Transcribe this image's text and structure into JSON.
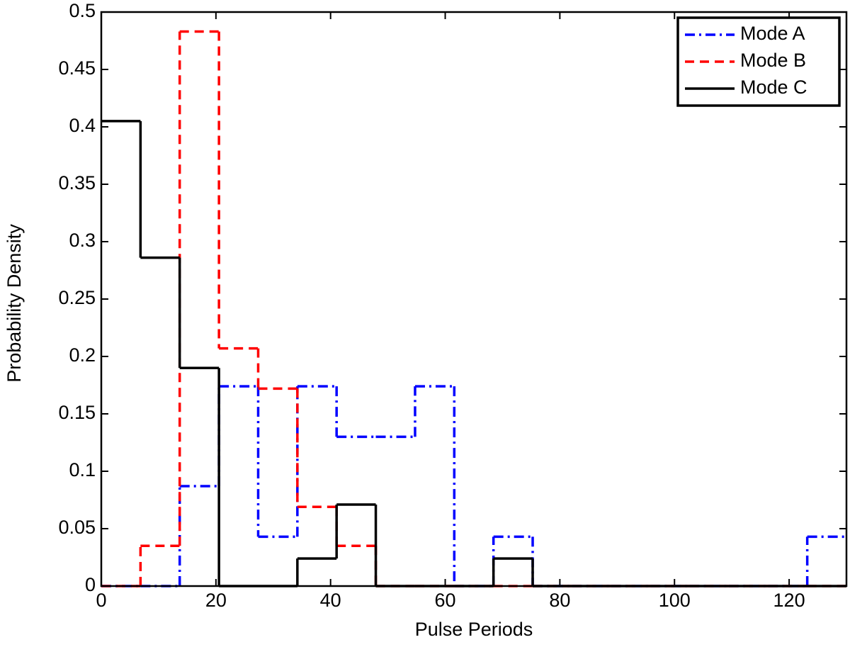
{
  "chart_data": {
    "type": "histogram",
    "xlabel": "Pulse Periods",
    "ylabel": "Probability Density",
    "bins": [
      0,
      6.84,
      13.68,
      20.53,
      27.37,
      34.21,
      41.05,
      47.89,
      54.74,
      61.58,
      68.42,
      75.26,
      82.11,
      88.95,
      95.79,
      102.63,
      109.47,
      116.32,
      123.16,
      130
    ],
    "series": [
      {
        "name": "Mode A",
        "color": "#0000ff",
        "linestyle": "-.",
        "values": [
          0,
          0,
          0.087,
          0.174,
          0.043,
          0.174,
          0.13,
          0.13,
          0.174,
          0,
          0.043,
          0,
          0,
          0,
          0,
          0,
          0,
          0,
          0.043
        ]
      },
      {
        "name": "Mode B",
        "color": "#ff0000",
        "linestyle": "--",
        "values": [
          0,
          0.035,
          0.483,
          0.207,
          0.172,
          0.069,
          0.035,
          0,
          0,
          0,
          0,
          0,
          0,
          0,
          0,
          0,
          0,
          0,
          0
        ]
      },
      {
        "name": "Mode C",
        "color": "#000000",
        "linestyle": "-",
        "values": [
          0.405,
          0.286,
          0.19,
          0,
          0,
          0.024,
          0.071,
          0,
          0,
          0,
          0.024,
          0,
          0,
          0,
          0,
          0,
          0,
          0,
          0
        ]
      }
    ],
    "xlim": [
      0,
      130
    ],
    "ylim": [
      0,
      0.5
    ],
    "xticks": [
      0,
      20,
      40,
      60,
      80,
      100,
      120
    ],
    "yticks": [
      0,
      0.05,
      0.1,
      0.15,
      0.2,
      0.25,
      0.3,
      0.35,
      0.4,
      0.45,
      0.5
    ],
    "grid": false,
    "legend": "upper right"
  }
}
